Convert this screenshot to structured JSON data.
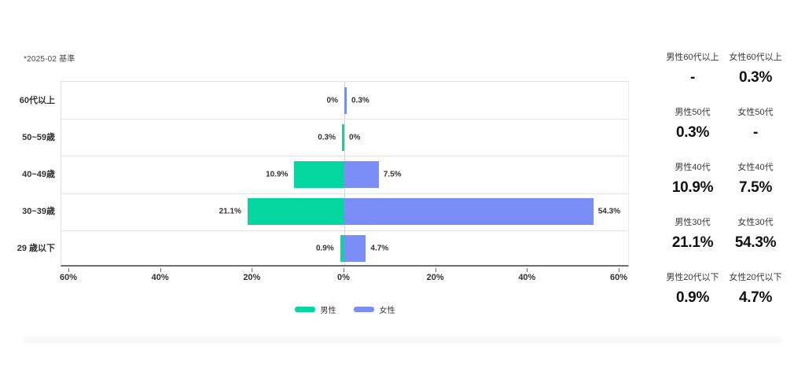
{
  "note": "*2025-02 基準",
  "chart_data": {
    "type": "bar",
    "subtype": "diverging-horizontal-age-pyramid",
    "categories": [
      "60代以上",
      "50~59歳",
      "40~49歳",
      "30~39歳",
      "29 歳以下"
    ],
    "series": [
      {
        "name": "男性",
        "color": "#06d6a0",
        "values": [
          0,
          0.3,
          10.9,
          21.1,
          0.9
        ],
        "labels": [
          "0%",
          "0.3%",
          "10.9%",
          "21.1%",
          "0.9%"
        ],
        "side": "left"
      },
      {
        "name": "女性",
        "color": "#7b8ef7",
        "values": [
          0.3,
          0,
          7.5,
          54.3,
          4.7
        ],
        "labels": [
          "0.3%",
          "0%",
          "7.5%",
          "54.3%",
          "4.7%"
        ],
        "side": "right"
      }
    ],
    "x_ticks": [
      "60%",
      "40%",
      "20%",
      "0%",
      "20%",
      "40%",
      "60%"
    ],
    "x_tick_values": [
      -60,
      -40,
      -20,
      0,
      20,
      40,
      60
    ],
    "x_max": 60,
    "grid": "center-zero-line",
    "legend_position": "bottom-center",
    "legend": [
      "男性",
      "女性"
    ]
  },
  "stats": [
    {
      "male_label": "男性60代以上",
      "male_value": "-",
      "female_label": "女性60代以上",
      "female_value": "0.3%"
    },
    {
      "male_label": "男性50代",
      "male_value": "0.3%",
      "female_label": "女性50代",
      "female_value": "-"
    },
    {
      "male_label": "男性40代",
      "male_value": "10.9%",
      "female_label": "女性40代",
      "female_value": "7.5%"
    },
    {
      "male_label": "男性30代",
      "male_value": "21.1%",
      "female_label": "女性30代",
      "female_value": "54.3%"
    },
    {
      "male_label": "男性20代以下",
      "male_value": "0.9%",
      "female_label": "女性20代以下",
      "female_value": "4.7%"
    }
  ]
}
